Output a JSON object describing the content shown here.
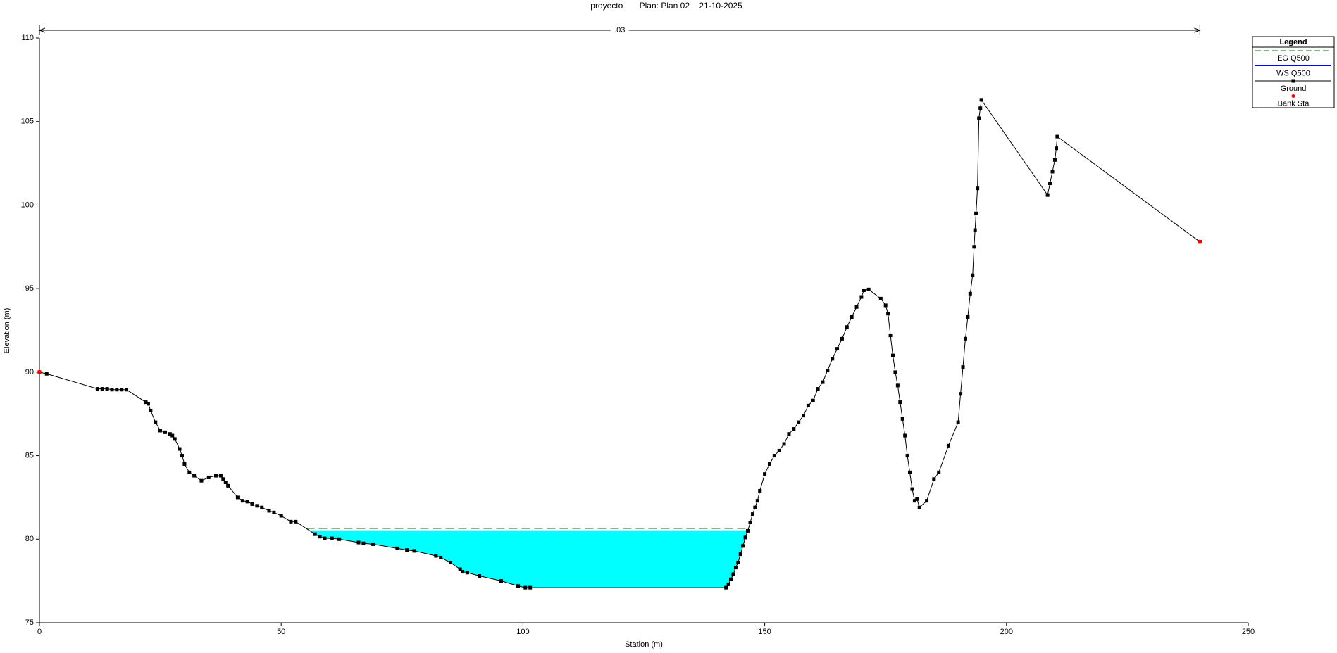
{
  "chart_data": {
    "type": "cross-section",
    "title": "proyecto       Plan: Plan 02    21-10-2025",
    "x_label": "Station (m)",
    "y_label": "Elevation (m)",
    "xlim": [
      0,
      250
    ],
    "xticks": [
      0,
      50,
      100,
      150,
      200,
      250
    ],
    "ylim": [
      75,
      110
    ],
    "yticks": [
      75,
      80,
      85,
      90,
      95,
      100,
      105,
      110
    ],
    "annotation": {
      "text": ".03",
      "x_start": 0,
      "x_end": 240
    },
    "legend_title": "Legend",
    "legend": "right",
    "water_color": "#00ffff",
    "series": [
      {
        "name": "EG Q500",
        "color": "#007a00",
        "dash": true,
        "value": 80.65
      },
      {
        "name": "WS Q500",
        "color": "#0000ff",
        "value": 80.5
      },
      {
        "name": "Ground",
        "color": "#000000",
        "x": [
          0,
          1.5,
          12,
          13,
          14,
          15,
          16,
          17,
          18,
          22,
          22.5,
          23,
          24,
          25,
          26,
          27,
          27.5,
          28,
          29,
          29.5,
          30,
          31,
          32,
          33.5,
          35,
          36.5,
          37.5,
          38,
          38.5,
          39,
          41,
          42,
          43,
          44,
          45,
          46,
          47.5,
          48.5,
          50,
          52,
          53,
          57,
          58,
          59,
          60.5,
          62,
          66,
          67,
          69,
          74,
          76,
          77.5,
          82,
          83,
          85,
          87,
          87.5,
          88.5,
          91,
          95.5,
          99,
          100.5,
          101.5,
          142,
          142.5,
          143,
          143.5,
          144,
          144.5,
          145,
          145.5,
          146,
          146.5,
          147,
          147.5,
          148,
          148.5,
          149,
          150,
          151,
          152,
          153,
          154,
          155,
          156,
          157,
          158,
          159,
          160,
          161,
          162,
          163,
          164,
          165,
          166,
          167,
          168,
          169,
          170,
          170.5,
          171.5,
          174,
          175,
          175.5,
          176,
          176.5,
          177,
          177.5,
          178,
          178.5,
          179,
          179.5,
          180,
          180.5,
          181,
          181.5,
          182,
          183.5,
          185,
          186,
          188,
          190,
          190.5,
          191,
          191.5,
          192,
          192.5,
          193,
          193.3,
          193.5,
          193.7,
          194,
          194.3,
          194.6,
          194.8,
          208.5,
          209,
          209.5,
          210,
          210.3,
          210.5,
          240
        ],
        "values": [
          90,
          89.9,
          89,
          89,
          89,
          88.95,
          88.95,
          88.95,
          88.95,
          88.2,
          88.1,
          87.7,
          87,
          86.5,
          86.4,
          86.3,
          86.2,
          86,
          85.4,
          85,
          84.5,
          84,
          83.8,
          83.5,
          83.7,
          83.8,
          83.8,
          83.6,
          83.4,
          83.2,
          82.5,
          82.3,
          82.25,
          82.1,
          82,
          81.9,
          81.7,
          81.6,
          81.4,
          81.05,
          81.05,
          80.3,
          80.15,
          80.05,
          80.05,
          80,
          79.8,
          79.75,
          79.7,
          79.45,
          79.35,
          79.3,
          79,
          78.9,
          78.6,
          78.2,
          78.05,
          78,
          77.8,
          77.5,
          77.2,
          77.1,
          77.1,
          77.1,
          77.3,
          77.6,
          77.9,
          78.3,
          78.6,
          79.1,
          79.6,
          80.1,
          80.5,
          81,
          81.5,
          81.9,
          82.3,
          82.9,
          83.9,
          84.5,
          85,
          85.3,
          85.7,
          86.3,
          86.6,
          87,
          87.4,
          88,
          88.3,
          89,
          89.4,
          90.1,
          90.8,
          91.4,
          92,
          92.7,
          93.3,
          93.9,
          94.5,
          94.9,
          94.95,
          94.4,
          94,
          93.5,
          92.2,
          91,
          90,
          89.2,
          88.2,
          87.2,
          86.2,
          85,
          84,
          83,
          82.3,
          82.4,
          81.9,
          82.3,
          83.6,
          84,
          85.6,
          87,
          88.7,
          90.3,
          92,
          93.3,
          94.7,
          95.8,
          97.5,
          98.5,
          99.5,
          101,
          105.2,
          105.8,
          106.3,
          100.6,
          101.3,
          102,
          102.7,
          103.4,
          104.1,
          97.8
        ]
      },
      {
        "name": "Bank Sta",
        "color": "#ff0000",
        "x": [
          0,
          240
        ],
        "values": [
          90,
          97.8
        ]
      }
    ]
  }
}
